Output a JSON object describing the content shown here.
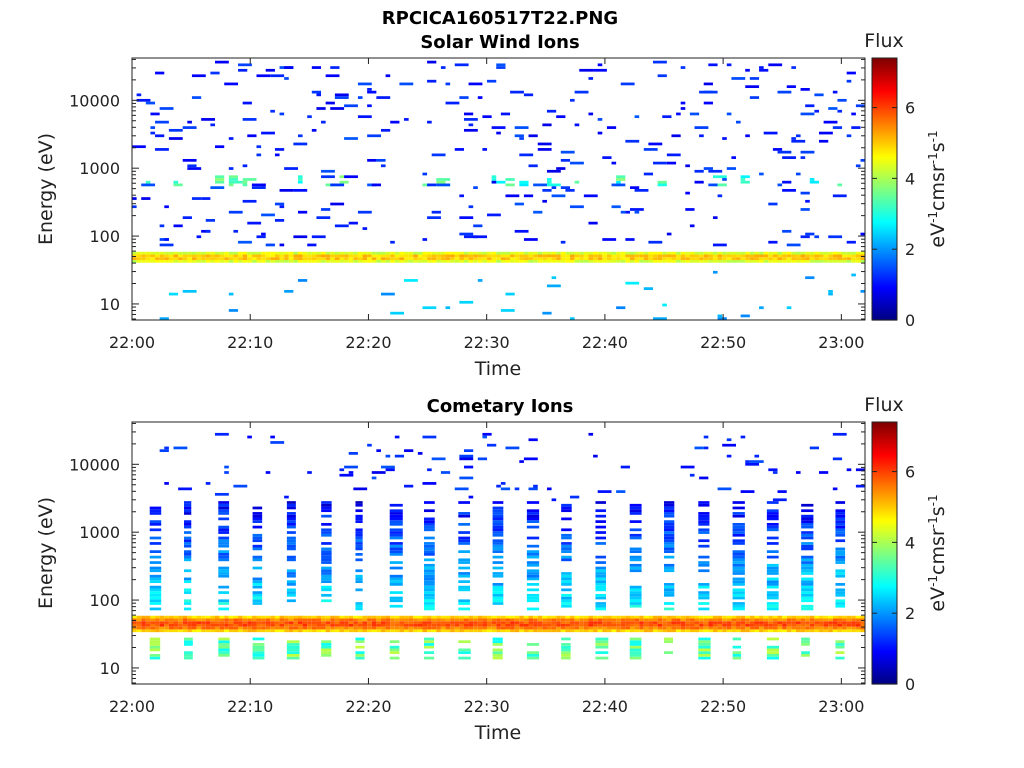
{
  "figure_title": "RPCICA160517T22.PNG",
  "colors": {
    "colormap": [
      "#00007f",
      "#0000ff",
      "#007fff",
      "#00ffff",
      "#7fff7f",
      "#ffff00",
      "#ff7f00",
      "#ff0000",
      "#7f0000"
    ],
    "axis": "#222222"
  },
  "chart_data": [
    {
      "type": "heatmap",
      "title": "Solar Wind Ions",
      "xlabel": "Time",
      "ylabel": "Energy (eV)",
      "x_ticks": [
        "22:00",
        "22:10",
        "22:20",
        "22:30",
        "22:40",
        "22:50",
        "23:00"
      ],
      "x_range_minutes": [
        0,
        62
      ],
      "y_scale": "log",
      "y_ticks": [
        "10",
        "100",
        "1000",
        "10000"
      ],
      "y_range": [
        5.8,
        42000
      ],
      "colorbar": {
        "title": "Flux",
        "label": "eV-1cm-2sr-1s-1",
        "ticks": [
          "0",
          "2",
          "4",
          "6"
        ],
        "range": [
          0,
          7.4
        ]
      },
      "features": [
        {
          "feature": "continuous band",
          "energy_range": [
            40,
            60
          ],
          "flux": 4.6
        },
        {
          "feature": "intermittent band",
          "energy_range": [
            550,
            800
          ],
          "flux": 3.2
        },
        {
          "feature": "scattered counts",
          "energy_range": [
            70,
            40000
          ],
          "flux": 1.0
        },
        {
          "feature": "scattered low-energy counts",
          "energy_range": [
            6,
            30
          ],
          "flux": 2.1
        }
      ]
    },
    {
      "type": "heatmap",
      "title": "Cometary Ions",
      "xlabel": "Time",
      "ylabel": "Energy (eV)",
      "x_ticks": [
        "22:00",
        "22:10",
        "22:20",
        "22:30",
        "22:40",
        "22:50",
        "23:00"
      ],
      "x_range_minutes": [
        0,
        62
      ],
      "y_scale": "log",
      "y_ticks": [
        "10",
        "100",
        "1000",
        "10000"
      ],
      "y_range": [
        5.8,
        42000
      ],
      "colorbar": {
        "title": "Flux",
        "label": "eV-1cm-2sr-1s-1",
        "ticks": [
          "0",
          "2",
          "4",
          "6"
        ],
        "range": [
          0,
          7.4
        ]
      },
      "features": [
        {
          "feature": "continuous band",
          "energy_range": [
            35,
            60
          ],
          "flux": 5.4
        },
        {
          "feature": "periodic vertical stripes",
          "period_minutes": 2.9,
          "energy_range": [
            70,
            3000
          ],
          "flux": 2.4
        },
        {
          "feature": "periodic low-energy blocks",
          "energy_range": [
            13,
            28
          ],
          "flux": 3.5
        },
        {
          "feature": "scattered high-energy counts",
          "energy_range": [
            3000,
            30000
          ],
          "flux": 1.0
        }
      ]
    }
  ]
}
